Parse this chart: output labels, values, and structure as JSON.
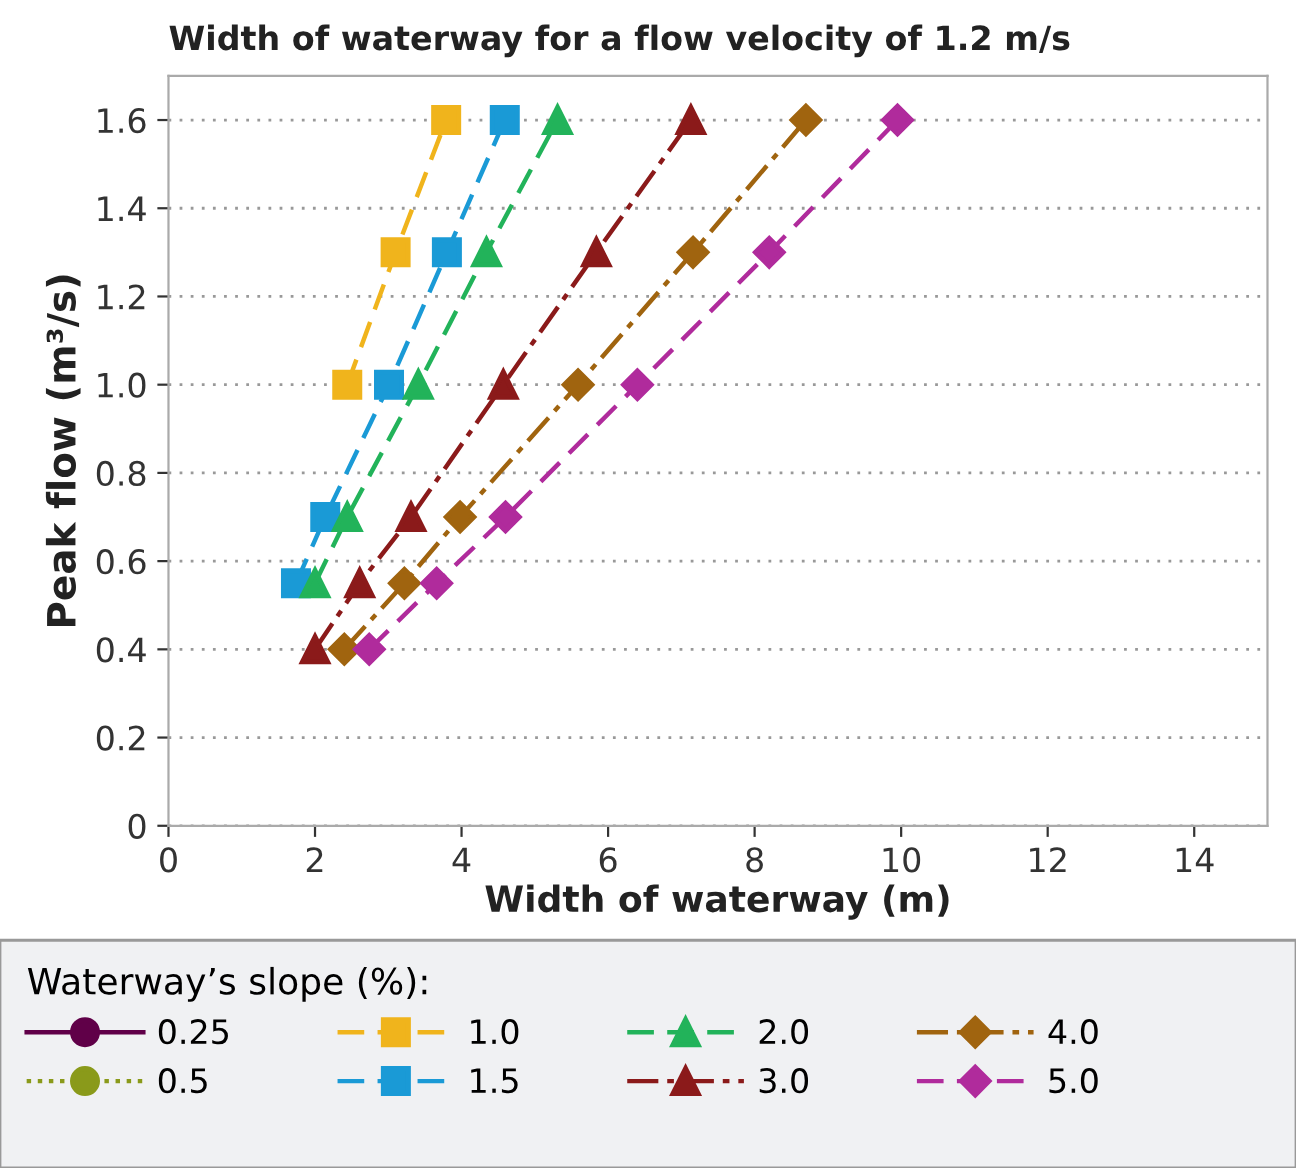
{
  "chart_data": {
    "type": "line",
    "title": "Width of waterway for a flow velocity of 1.2 m/s",
    "xlabel": "Width of waterway (m)",
    "ylabel": "Peak flow (m³/s)",
    "legend_title": "Waterway’s slope (%):",
    "legend": "bottom",
    "xlim": [
      0,
      15
    ],
    "xticks": [
      0,
      2,
      4,
      6,
      8,
      10,
      12,
      14
    ],
    "ylim": [
      0,
      1.7
    ],
    "yticks": [
      0,
      0.2,
      0.4,
      0.6,
      0.8,
      {
        "value": 1.0,
        "label": "1.0"
      },
      1.2,
      1.4,
      1.6
    ],
    "grid": "y",
    "series": [
      {
        "name": "0.25",
        "color": "#600048",
        "marker": "circle",
        "line_style": "solid"
      },
      {
        "name": "0.5",
        "color": "#8a9a1a",
        "marker": "circle",
        "line_style": "dotted"
      },
      {
        "name": "1.0",
        "color": "#f0b41c",
        "marker": "square",
        "line_style": "dashed",
        "x": [
          2.44,
          3.1,
          3.79
        ],
        "values": [
          1.0,
          1.3,
          1.6
        ]
      },
      {
        "name": "1.5",
        "color": "#1a9ad6",
        "marker": "square",
        "line_style": "dashed",
        "x": [
          1.74,
          2.14,
          3.01,
          3.8,
          4.59
        ],
        "values": [
          0.55,
          0.7,
          1.0,
          1.3,
          1.6
        ]
      },
      {
        "name": "2.0",
        "color": "#22b35a",
        "marker": "triangle",
        "line_style": "dashed",
        "x": [
          2.0,
          2.44,
          3.41,
          4.34,
          5.31
        ],
        "values": [
          0.55,
          0.7,
          1.0,
          1.3,
          1.6
        ]
      },
      {
        "name": "3.0",
        "color": "#8b1a1a",
        "marker": "triangle",
        "line_style": "dashdot",
        "x": [
          2.0,
          2.61,
          3.31,
          4.57,
          5.84,
          7.13
        ],
        "values": [
          0.4,
          0.55,
          0.7,
          1.0,
          1.3,
          1.6
        ]
      },
      {
        "name": "4.0",
        "color": "#a0640f",
        "marker": "diamond",
        "line_style": "dashdot",
        "x": [
          2.4,
          3.22,
          3.98,
          5.59,
          7.16,
          8.7
        ],
        "values": [
          0.4,
          0.55,
          0.7,
          1.0,
          1.3,
          1.6
        ]
      },
      {
        "name": "5.0",
        "color": "#b02b9c",
        "marker": "diamond",
        "line_style": "dashed",
        "x": [
          2.74,
          3.66,
          4.6,
          6.4,
          8.2,
          9.95
        ],
        "values": [
          0.4,
          0.55,
          0.7,
          1.0,
          1.3,
          1.6
        ]
      }
    ]
  }
}
